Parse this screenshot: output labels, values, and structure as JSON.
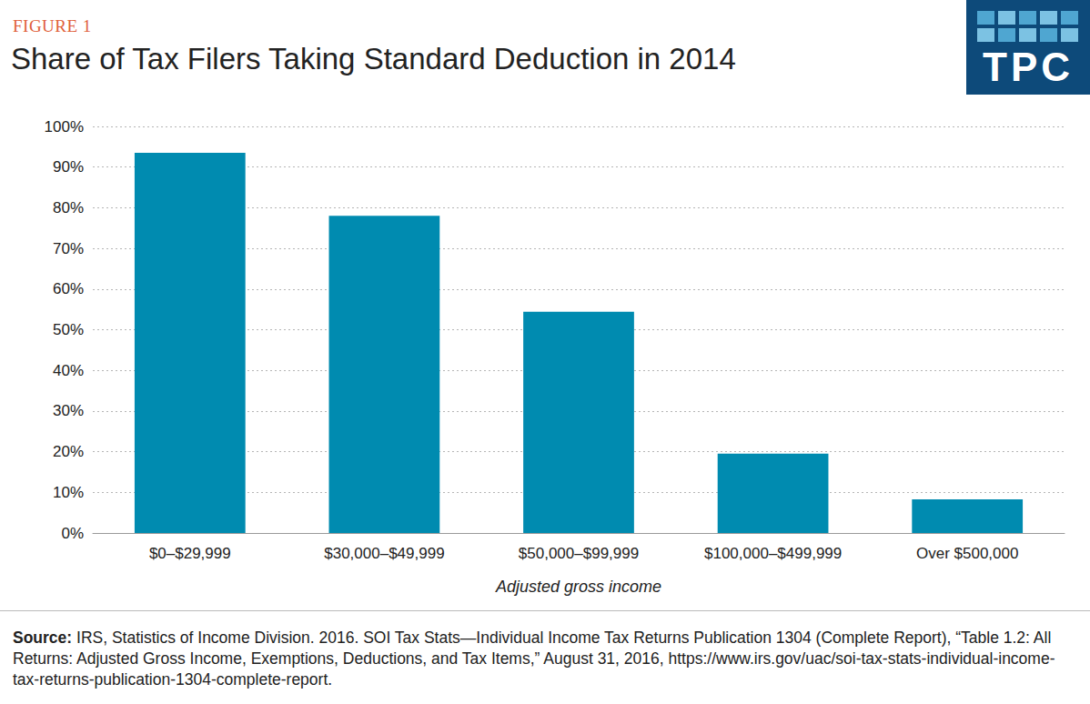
{
  "chart_data": {
    "type": "bar",
    "figure_label": "FIGURE 1",
    "title": "Share of Tax Filers Taking Standard Deduction in 2014",
    "logo_text": "TPC",
    "categories": [
      "$0–$29,999",
      "$30,000–$49,999",
      "$50,000–$99,999",
      "$100,000–$499,999",
      "Over $500,000"
    ],
    "values": [
      93.5,
      78,
      54.4,
      19.5,
      8.3
    ],
    "color": "#008bb0",
    "ylim": [
      0,
      100
    ],
    "yticks": [
      {
        "value": 0,
        "label": "0%"
      },
      {
        "value": 10,
        "label": "10%"
      },
      {
        "value": 20,
        "label": "20%"
      },
      {
        "value": 30,
        "label": "30%"
      },
      {
        "value": 40,
        "label": "40%"
      },
      {
        "value": 50,
        "label": "50%"
      },
      {
        "value": 60,
        "label": "60%"
      },
      {
        "value": 70,
        "label": "70%"
      },
      {
        "value": 80,
        "label": "80%"
      },
      {
        "value": 90,
        "label": "90%"
      },
      {
        "value": 100,
        "label": "100%"
      }
    ],
    "grid": true,
    "x_label": "Adjusted gross income",
    "source_label": "Source:",
    "source_text": "IRS, Statistics of Income Division. 2016. SOI Tax Stats—Individual Income Tax Returns Publication 1304 (Complete Report), “Table 1.2: All Returns: Adjusted Gross Income, Exemptions, Deductions, and Tax Items,” August 31, 2016, https://www.irs.gov/uac/soi-tax-stats-individual-income-tax-returns-publication-1304-complete-report."
  }
}
